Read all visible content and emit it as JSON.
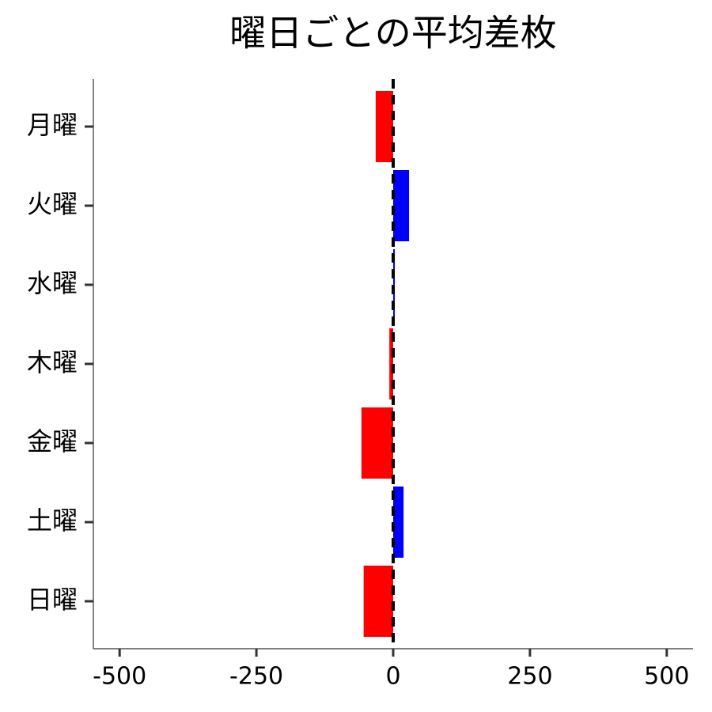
{
  "chart_data": {
    "type": "barh",
    "title": "曜日ごとの平均差枚",
    "categories": [
      "月曜",
      "火曜",
      "水曜",
      "木曜",
      "金曜",
      "土曜",
      "日曜"
    ],
    "values": [
      -32,
      29,
      3,
      -7,
      -58,
      19,
      -54
    ],
    "colors": [
      "#ff0000",
      "#0000ff",
      "#0000ff",
      "#ff0000",
      "#ff0000",
      "#0000ff",
      "#ff0000"
    ],
    "xlim": [
      -548,
      548
    ],
    "xticks": [
      -500,
      -250,
      0,
      250,
      500
    ],
    "vline": 0
  }
}
